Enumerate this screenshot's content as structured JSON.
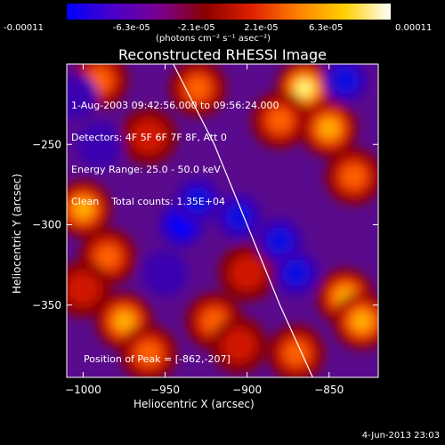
{
  "colorbar": {
    "ticks": [
      "-0.00011",
      "-6.3e-05",
      "-2.1e-05",
      "2.1e-05",
      "6.3e-05",
      "0.00011"
    ],
    "unit": "(photons cm⁻² s⁻¹ asec⁻²)",
    "gradient": [
      "#0000ff",
      "#4a00c8",
      "#7a0090",
      "#8a0000",
      "#e02000",
      "#ff8000",
      "#ffd000",
      "#ffffff"
    ]
  },
  "chart_data": {
    "type": "heatmap",
    "title": "Reconstructed RHESSI Image",
    "xlabel": "Heliocentric X (arcsec)",
    "ylabel": "Heliocentric Y (arcsec)",
    "xlim": [
      -1010,
      -820
    ],
    "ylim": [
      -395,
      -200
    ],
    "x_ticks": [
      -1000,
      -950,
      -900,
      -850
    ],
    "y_ticks": [
      -250,
      -300,
      -350
    ],
    "x_tick_labels": [
      "−1000",
      "−950",
      "−900",
      "−850"
    ],
    "y_tick_labels": [
      "−250",
      "−300",
      "−350"
    ],
    "annotations": [
      "1-Aug-2003 09:42:56.000 to 09:56:24.000",
      "Detectors: 4F 5F 6F 7F 8F, Att 0",
      "Energy Range: 25.0 - 50.0 keV",
      "Clean    Total counts: 1.35E+04"
    ],
    "peak_label": "Position of Peak = [-862,-207]",
    "peak": [
      -862,
      -207
    ],
    "limb": [
      [
        -945,
        -200
      ],
      [
        -920,
        -250
      ],
      [
        -900,
        -300
      ],
      [
        -880,
        -350
      ],
      [
        -860,
        -395
      ]
    ],
    "blobs": [
      {
        "x": -865,
        "y": -215,
        "v": 1.0
      },
      {
        "x": -850,
        "y": -240,
        "v": 0.8
      },
      {
        "x": -835,
        "y": -270,
        "v": 0.6
      },
      {
        "x": -880,
        "y": -235,
        "v": 0.6
      },
      {
        "x": -930,
        "y": -215,
        "v": 0.55
      },
      {
        "x": -990,
        "y": -210,
        "v": 0.5
      },
      {
        "x": -1000,
        "y": -290,
        "v": 0.7
      },
      {
        "x": -985,
        "y": -320,
        "v": 0.6
      },
      {
        "x": -1000,
        "y": -340,
        "v": 0.45
      },
      {
        "x": -975,
        "y": -360,
        "v": 0.7
      },
      {
        "x": -960,
        "y": -380,
        "v": 0.6
      },
      {
        "x": -920,
        "y": -360,
        "v": 0.5
      },
      {
        "x": -905,
        "y": -375,
        "v": 0.45
      },
      {
        "x": -870,
        "y": -380,
        "v": 0.6
      },
      {
        "x": -840,
        "y": -345,
        "v": 0.85
      },
      {
        "x": -830,
        "y": -360,
        "v": 0.75
      },
      {
        "x": -960,
        "y": -245,
        "v": 0.35
      },
      {
        "x": -900,
        "y": -330,
        "v": 0.4
      },
      {
        "x": -940,
        "y": -300,
        "v": -0.9
      },
      {
        "x": -905,
        "y": -295,
        "v": -0.8
      },
      {
        "x": -930,
        "y": -285,
        "v": -0.6
      },
      {
        "x": -880,
        "y": -310,
        "v": -0.5
      },
      {
        "x": -870,
        "y": -330,
        "v": -0.6
      },
      {
        "x": -950,
        "y": -330,
        "v": -0.4
      },
      {
        "x": -840,
        "y": -210,
        "v": -0.5
      },
      {
        "x": -990,
        "y": -250,
        "v": -0.35
      },
      {
        "x": -1005,
        "y": -220,
        "v": -0.3
      }
    ]
  },
  "date_stamp": "4-Jun-2013 23:03"
}
